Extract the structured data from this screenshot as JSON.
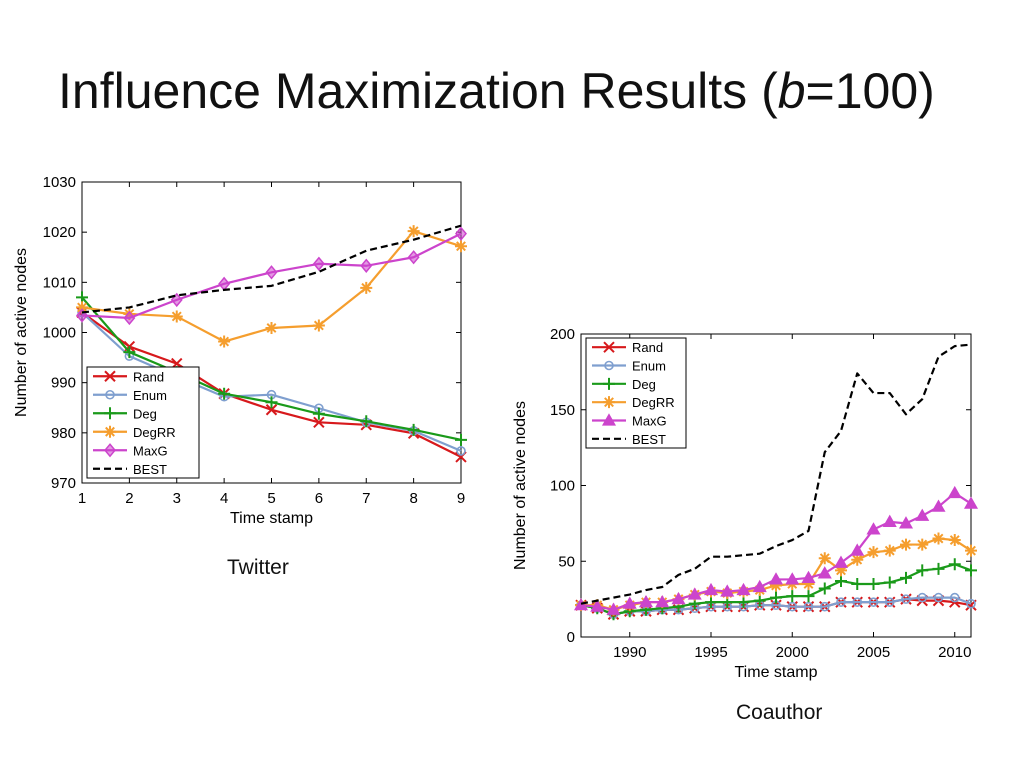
{
  "slide": {
    "title_prefix": "Influence Maximization Results (",
    "title_var": "b",
    "title_suffix": "=100)"
  },
  "chart_data": [
    {
      "id": "twitter",
      "type": "line",
      "caption": "Twitter",
      "xlabel": "Time stamp",
      "ylabel": "Number of active nodes",
      "xlim": [
        1,
        9
      ],
      "ylim": [
        970,
        1030
      ],
      "xticks": [
        1,
        2,
        3,
        4,
        5,
        6,
        7,
        8,
        9
      ],
      "yticks": [
        970,
        980,
        990,
        1000,
        1010,
        1020,
        1030
      ],
      "legend_position": "bottom-left",
      "x": [
        1,
        2,
        3,
        4,
        5,
        6,
        7,
        8,
        9
      ],
      "series": [
        {
          "name": "Rand",
          "color": "#d7191c",
          "marker": "x",
          "dash": false,
          "values": [
            1004,
            997.2,
            993.8,
            987.8,
            984.6,
            982.1,
            981.6,
            979.9,
            975.2
          ]
        },
        {
          "name": "Enum",
          "color": "#7f9fcf",
          "marker": "circle",
          "dash": false,
          "values": [
            1004,
            995.3,
            991.2,
            987.2,
            987.6,
            984.9,
            982.1,
            980.4,
            976.4
          ]
        },
        {
          "name": "Deg",
          "color": "#1a9a1a",
          "marker": "plus",
          "dash": false,
          "values": [
            1007,
            996.1,
            992.1,
            987.8,
            986.1,
            983.8,
            982.3,
            980.6,
            978.6
          ]
        },
        {
          "name": "DegRR",
          "color": "#f59e2e",
          "marker": "star",
          "dash": false,
          "values": [
            1005,
            1003.7,
            1003.2,
            998.2,
            1000.9,
            1001.4,
            1008.9,
            1020.2,
            1017.2
          ]
        },
        {
          "name": "MaxG",
          "color": "#cc44cc",
          "marker": "diamond",
          "dash": false,
          "values": [
            1003.4,
            1002.9,
            1006.5,
            1009.7,
            1012,
            1013.7,
            1013.3,
            1015,
            1019.7
          ]
        },
        {
          "name": "BEST",
          "color": "#000000",
          "marker": "none",
          "dash": true,
          "values": [
            1004,
            1005,
            1007.4,
            1008.5,
            1009.3,
            1012.1,
            1016.3,
            1018.5,
            1021.3
          ]
        }
      ]
    },
    {
      "id": "coauthor",
      "type": "line",
      "caption": "Coauthor",
      "xlabel": "Time stamp",
      "ylabel": "Number of active nodes",
      "xlim": [
        1987,
        2011
      ],
      "ylim": [
        0,
        200
      ],
      "xticks": [
        1990,
        1995,
        2000,
        2005,
        2010
      ],
      "yticks": [
        0,
        50,
        100,
        150,
        200
      ],
      "legend_position": "top-left",
      "x": [
        1987,
        1988,
        1989,
        1990,
        1991,
        1992,
        1993,
        1994,
        1995,
        1996,
        1997,
        1998,
        1999,
        2000,
        2001,
        2002,
        2003,
        2004,
        2005,
        2006,
        2007,
        2008,
        2009,
        2010,
        2011
      ],
      "series": [
        {
          "name": "Rand",
          "color": "#d7191c",
          "marker": "x",
          "dash": false,
          "values": [
            21,
            19,
            15,
            17,
            17,
            18,
            18,
            19,
            20,
            20,
            20,
            21,
            21,
            20,
            20,
            20,
            23,
            23,
            23,
            23,
            25,
            24,
            24,
            23,
            21
          ]
        },
        {
          "name": "Enum",
          "color": "#7f9fcf",
          "marker": "circle",
          "dash": false,
          "values": [
            21,
            19,
            15,
            17,
            17,
            18,
            18,
            19,
            20,
            20,
            20,
            21,
            21,
            20,
            20,
            20,
            23,
            23,
            23,
            23,
            25,
            26,
            26,
            26,
            22
          ]
        },
        {
          "name": "Deg",
          "color": "#1a9a1a",
          "marker": "plus",
          "dash": false,
          "values": [
            21,
            19,
            15,
            17,
            18,
            19,
            20,
            22,
            23,
            23,
            23,
            24,
            26,
            27,
            27,
            32,
            37,
            35,
            35,
            36,
            39,
            44,
            45,
            48,
            44
          ]
        },
        {
          "name": "DegRR",
          "color": "#f59e2e",
          "marker": "star",
          "dash": false,
          "values": [
            21,
            21,
            18,
            21,
            23,
            23,
            25,
            28,
            30,
            29,
            30,
            31,
            34,
            35,
            35,
            52,
            44,
            51,
            56,
            57,
            61,
            61,
            65,
            64,
            57
          ]
        },
        {
          "name": "MaxG",
          "color": "#cc44cc",
          "marker": "triangle",
          "dash": false,
          "values": [
            21,
            20,
            18,
            22,
            23,
            23,
            25,
            28,
            31,
            30,
            31,
            33,
            38,
            38,
            39,
            42,
            49,
            57,
            71,
            76,
            75,
            80,
            86,
            95,
            88
          ]
        },
        {
          "name": "BEST",
          "color": "#000000",
          "marker": "none",
          "dash": true,
          "values": [
            22,
            24,
            26,
            28,
            31,
            33,
            41,
            45,
            53,
            53,
            54,
            55,
            60,
            64,
            70,
            122,
            136,
            174,
            161,
            161,
            147,
            157,
            185,
            192,
            193
          ]
        }
      ]
    }
  ]
}
